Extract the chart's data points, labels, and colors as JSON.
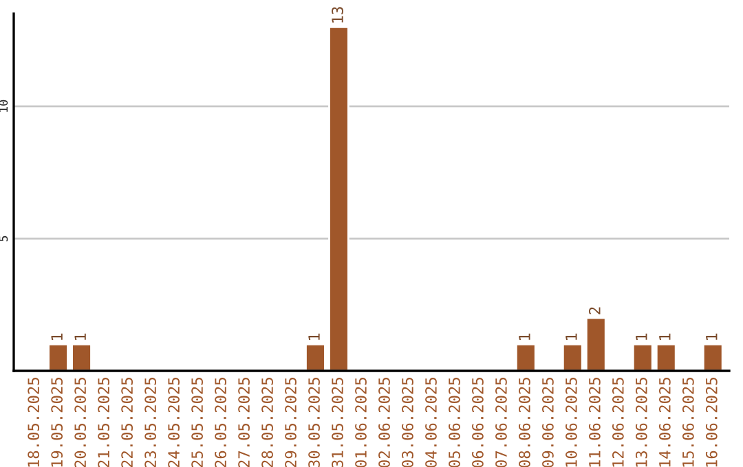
{
  "chart_data": {
    "type": "bar",
    "categories": [
      "18.05.2025",
      "19.05.2025",
      "20.05.2025",
      "21.05.2025",
      "22.05.2025",
      "23.05.2025",
      "24.05.2025",
      "25.05.2025",
      "26.05.2025",
      "27.05.2025",
      "28.05.2025",
      "29.05.2025",
      "30.05.2025",
      "31.05.2025",
      "01.06.2025",
      "02.06.2025",
      "03.06.2025",
      "04.06.2025",
      "05.06.2025",
      "06.06.2025",
      "07.06.2025",
      "08.06.2025",
      "09.06.2025",
      "10.06.2025",
      "11.06.2025",
      "12.06.2025",
      "13.06.2025",
      "14.06.2025",
      "15.06.2025",
      "16.06.2025"
    ],
    "values": [
      0,
      1,
      1,
      0,
      0,
      0,
      0,
      0,
      0,
      0,
      0,
      0,
      1,
      13,
      0,
      0,
      0,
      0,
      0,
      0,
      0,
      1,
      0,
      1,
      2,
      0,
      1,
      1,
      0,
      1
    ],
    "value_labels": [
      null,
      "1",
      "1",
      null,
      null,
      null,
      null,
      null,
      null,
      null,
      null,
      null,
      "1",
      "13",
      null,
      null,
      null,
      null,
      null,
      null,
      null,
      "1",
      null,
      "1",
      "2",
      null,
      "1",
      "1",
      null,
      "1"
    ],
    "color": "#a0572a",
    "ylim": [
      0,
      13.5
    ],
    "yticks": [
      5,
      10
    ],
    "grid": "y"
  }
}
